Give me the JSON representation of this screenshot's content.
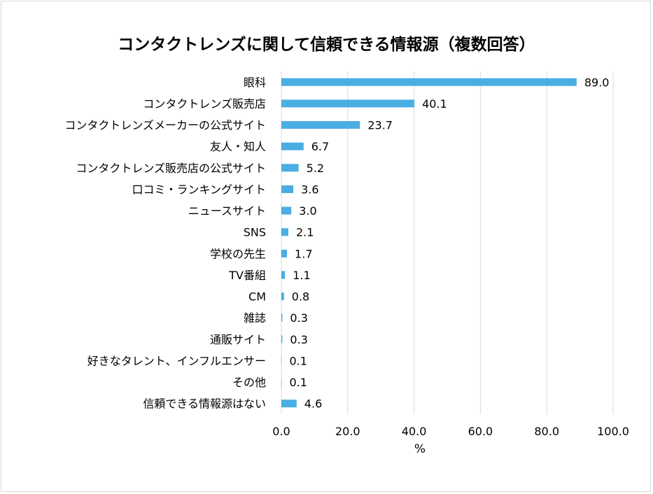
{
  "chart_data": {
    "type": "bar",
    "orientation": "horizontal",
    "title": "コンタクトレンズに関して信頼できる情報源（複数回答）",
    "xlabel": "%",
    "ylabel": "",
    "xlim": [
      0,
      100
    ],
    "x_ticks": [
      "0.0",
      "20.0",
      "40.0",
      "60.0",
      "80.0",
      "100.0"
    ],
    "grid": "vertical",
    "bar_color": "#4aaee2",
    "categories": [
      "眼科",
      "コンタクトレンズ販売店",
      "コンタクトレンズメーカーの公式サイト",
      "友人・知人",
      "コンタクトレンズ販売店の公式サイト",
      "口コミ・ランキングサイト",
      "ニュースサイト",
      "SNS",
      "学校の先生",
      "TV番組",
      "CM",
      "雑誌",
      "通販サイト",
      "好きなタレント、インフルエンサー",
      "その他",
      "信頼できる情報源はない"
    ],
    "values": [
      89.0,
      40.1,
      23.7,
      6.7,
      5.2,
      3.6,
      3.0,
      2.1,
      1.7,
      1.1,
      0.8,
      0.3,
      0.3,
      0.1,
      0.1,
      4.6
    ],
    "value_labels": [
      "89.0",
      "40.1",
      "23.7",
      "6.7",
      "5.2",
      "3.6",
      "3.0",
      "2.1",
      "1.7",
      "1.1",
      "0.8",
      "0.3",
      "0.3",
      "0.1",
      "0.1",
      "4.6"
    ]
  }
}
